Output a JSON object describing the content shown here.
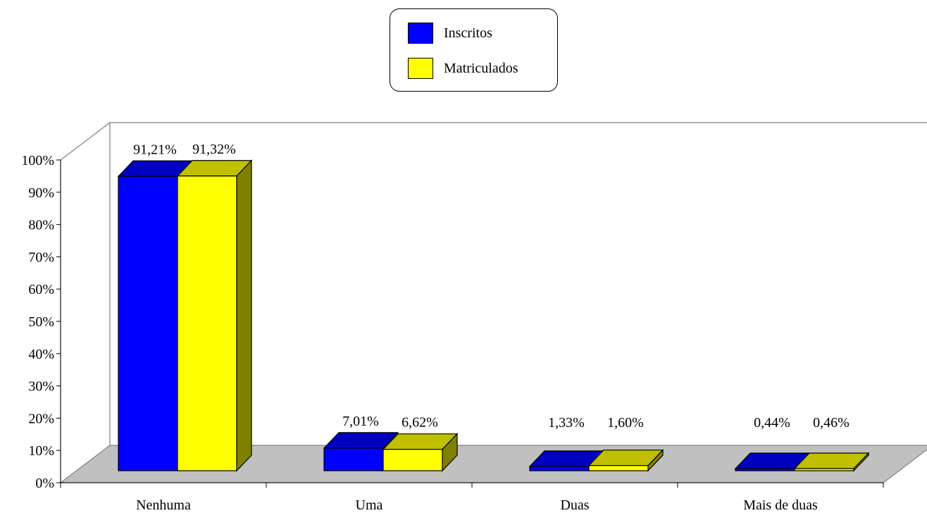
{
  "chart_data": {
    "type": "bar",
    "title": "",
    "xlabel": "",
    "ylabel": "",
    "categories": [
      "Nenhuma",
      "Uma",
      "Duas",
      "Mais de duas"
    ],
    "series": [
      {
        "name": "Inscritos",
        "values": [
          91.21,
          7.01,
          1.33,
          0.44
        ],
        "labels": [
          "91,21%",
          "7,01%",
          "1,33%",
          "0,44%"
        ]
      },
      {
        "name": "Matriculados",
        "values": [
          91.32,
          6.62,
          1.6,
          0.46
        ],
        "labels": [
          "91,32%",
          "6,62%",
          "1,60%",
          "0,46%"
        ]
      }
    ],
    "ylim": [
      0,
      100
    ],
    "yticks": [
      "0%",
      "10%",
      "20%",
      "30%",
      "40%",
      "50%",
      "60%",
      "70%",
      "80%",
      "90%",
      "100%"
    ],
    "style": "3d-clustered-bar",
    "legend_position": "top-center",
    "grid": false
  },
  "colors": {
    "inscritos_front": "#0000FF",
    "inscritos_top": "#0000C0",
    "inscritos_side": "#000080",
    "matriculados_front": "#FFFF00",
    "matriculados_top": "#C0C000",
    "matriculados_side": "#808000",
    "floor": "#C0C0C0"
  }
}
